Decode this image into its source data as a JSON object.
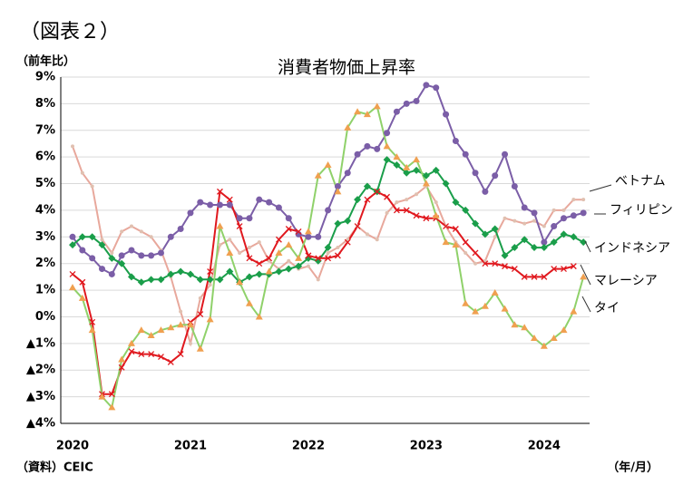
{
  "figure_label": "（図表２）",
  "chart_data": {
    "type": "line",
    "title": "消費者物価上昇率",
    "y_label": "（前年比）",
    "x_label": "（年/月）",
    "source": "（資料）CEIC",
    "categories": [
      "2020",
      null,
      null,
      null,
      null,
      null,
      null,
      null,
      null,
      null,
      null,
      null,
      "2021",
      null,
      null,
      null,
      null,
      null,
      null,
      null,
      null,
      null,
      null,
      null,
      "2022",
      null,
      null,
      null,
      null,
      null,
      null,
      null,
      null,
      null,
      null,
      null,
      "2023",
      null,
      null,
      null,
      null,
      null,
      null,
      null,
      null,
      null,
      null,
      null,
      "2024",
      null,
      null,
      null,
      null
    ],
    "ylim": [
      -4,
      9
    ],
    "yticks": [
      {
        "value": -4,
        "label": "▲4%"
      },
      {
        "value": -3,
        "label": "▲3%"
      },
      {
        "value": -2,
        "label": "▲2%"
      },
      {
        "value": -1,
        "label": "▲1%"
      },
      {
        "value": 0,
        "label": "0%"
      },
      {
        "value": 1,
        "label": "1%"
      },
      {
        "value": 2,
        "label": "2%"
      },
      {
        "value": 3,
        "label": "3%"
      },
      {
        "value": 4,
        "label": "4%"
      },
      {
        "value": 5,
        "label": "5%"
      },
      {
        "value": 6,
        "label": "6%"
      },
      {
        "value": 7,
        "label": "7%"
      },
      {
        "value": 8,
        "label": "8%"
      },
      {
        "value": 9,
        "label": "9%"
      }
    ],
    "grid": true,
    "series": [
      {
        "name": "ベトナム",
        "color": "#e8a89c",
        "marker_color": "#e0c0b0",
        "marker": "circle",
        "values": [
          6.4,
          5.4,
          4.9,
          2.9,
          2.4,
          3.2,
          3.4,
          3.2,
          3.0,
          2.5,
          1.5,
          0.2,
          -1.0,
          0.7,
          1.2,
          2.7,
          2.9,
          2.4,
          2.6,
          2.8,
          2.1,
          1.8,
          2.1,
          1.8,
          1.9,
          1.4,
          2.4,
          2.6,
          2.9,
          3.4,
          3.1,
          2.9,
          3.9,
          4.3,
          4.4,
          4.6,
          4.9,
          4.3,
          3.4,
          2.8,
          2.4,
          2.0,
          2.1,
          3.0,
          3.7,
          3.6,
          3.5,
          3.6,
          3.4,
          4.0,
          4.0,
          4.4,
          4.4
        ]
      },
      {
        "name": "フィリピン",
        "color": "#7b5ea7",
        "marker_color": "#7b5ea7",
        "marker": "circle",
        "values": [
          3.0,
          2.5,
          2.2,
          1.8,
          1.6,
          2.3,
          2.5,
          2.3,
          2.3,
          2.4,
          3.0,
          3.3,
          3.9,
          4.3,
          4.2,
          4.2,
          4.2,
          3.7,
          3.7,
          4.4,
          4.3,
          4.1,
          3.7,
          3.1,
          3.0,
          3.0,
          4.0,
          4.9,
          5.4,
          6.1,
          6.4,
          6.3,
          6.9,
          7.7,
          8.0,
          8.1,
          8.7,
          8.6,
          7.6,
          6.6,
          6.1,
          5.4,
          4.7,
          5.3,
          6.1,
          4.9,
          4.1,
          3.9,
          2.8,
          3.4,
          3.7,
          3.8,
          3.9
        ]
      },
      {
        "name": "インドネシア",
        "color": "#1a9e4a",
        "marker_color": "#1a9e4a",
        "marker": "diamond",
        "values": [
          2.7,
          3.0,
          3.0,
          2.7,
          2.2,
          2.0,
          1.5,
          1.3,
          1.4,
          1.4,
          1.6,
          1.7,
          1.6,
          1.4,
          1.4,
          1.4,
          1.7,
          1.3,
          1.5,
          1.6,
          1.6,
          1.7,
          1.8,
          1.9,
          2.2,
          2.1,
          2.6,
          3.5,
          3.6,
          4.4,
          4.9,
          4.7,
          5.9,
          5.7,
          5.4,
          5.5,
          5.3,
          5.5,
          5.0,
          4.3,
          4.0,
          3.5,
          3.1,
          3.3,
          2.3,
          2.6,
          2.9,
          2.6,
          2.6,
          2.8,
          3.1,
          3.0,
          2.8
        ]
      },
      {
        "name": "マレーシア",
        "color": "#e0181e",
        "marker_color": "#e0181e",
        "marker": "x",
        "values": [
          1.6,
          1.3,
          -0.2,
          -2.9,
          -2.9,
          -1.9,
          -1.3,
          -1.4,
          -1.4,
          -1.5,
          -1.7,
          -1.4,
          -0.2,
          0.1,
          1.7,
          4.7,
          4.4,
          3.4,
          2.2,
          2.0,
          2.2,
          2.9,
          3.3,
          3.2,
          2.3,
          2.2,
          2.2,
          2.3,
          2.8,
          3.4,
          4.4,
          4.7,
          4.5,
          4.0,
          4.0,
          3.8,
          3.7,
          3.7,
          3.4,
          3.3,
          2.8,
          2.4,
          2.0,
          2.0,
          1.9,
          1.8,
          1.5,
          1.5,
          1.5,
          1.8,
          1.8,
          1.9,
          null
        ]
      },
      {
        "name": "タイ",
        "color": "#8fd16a",
        "marker_color": "#f0a050",
        "marker": "triangle",
        "values": [
          1.1,
          0.7,
          -0.5,
          -3.0,
          -3.4,
          -1.6,
          -1.0,
          -0.5,
          -0.7,
          -0.5,
          -0.4,
          -0.3,
          -0.3,
          -1.2,
          -0.1,
          3.4,
          2.4,
          1.3,
          0.5,
          0.0,
          1.7,
          2.4,
          2.7,
          2.2,
          3.2,
          5.3,
          5.7,
          4.7,
          7.1,
          7.7,
          7.6,
          7.9,
          6.4,
          6.0,
          5.6,
          5.9,
          5.0,
          3.8,
          2.8,
          2.7,
          0.5,
          0.2,
          0.4,
          0.9,
          0.3,
          -0.3,
          -0.4,
          -0.8,
          -1.1,
          -0.8,
          -0.5,
          0.2,
          1.5
        ]
      }
    ]
  }
}
